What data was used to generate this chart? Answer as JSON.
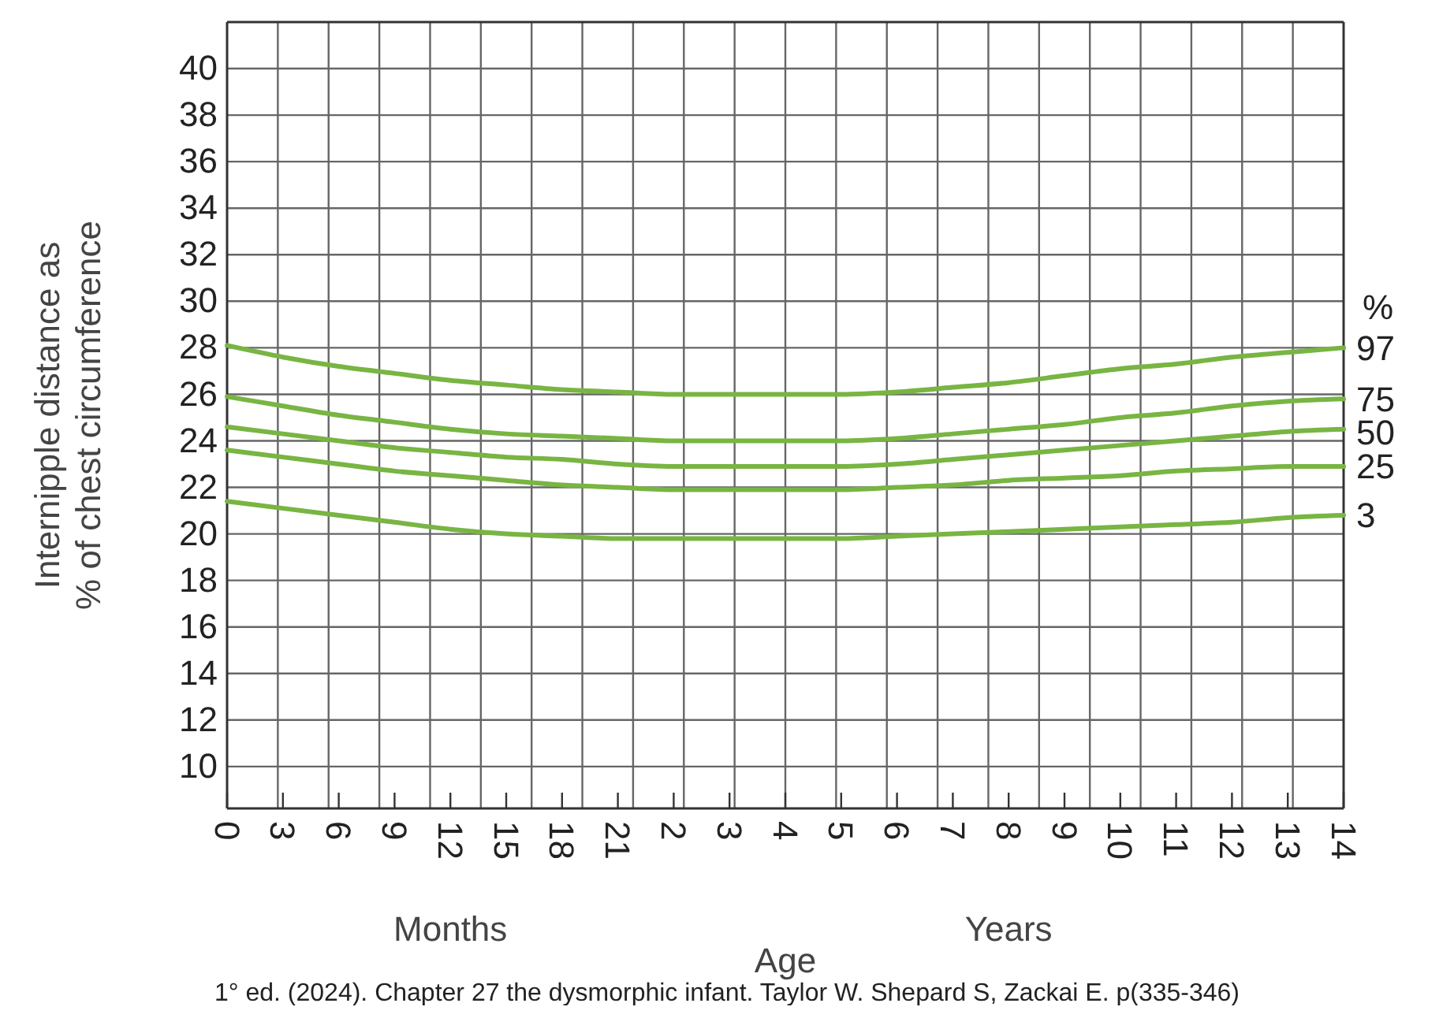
{
  "chart_data": {
    "type": "line",
    "ylabel": "Internipple distance as % of chest circumference",
    "xlabel": "Age",
    "legend_title": "%",
    "categories": [
      "0",
      "3",
      "6",
      "9",
      "12",
      "15",
      "18",
      "21",
      "2",
      "3",
      "4",
      "5",
      "6",
      "7",
      "8",
      "9",
      "10",
      "11",
      "12",
      "13",
      "14"
    ],
    "series": [
      {
        "name": "97",
        "color": "#78b543",
        "values": [
          28.1,
          27.6,
          27.2,
          26.9,
          26.6,
          26.4,
          26.2,
          26.1,
          26.0,
          26.0,
          26.0,
          26.0,
          26.1,
          26.3,
          26.5,
          26.8,
          27.1,
          27.3,
          27.6,
          27.8,
          28.0
        ]
      },
      {
        "name": "75",
        "color": "#78b543",
        "values": [
          25.9,
          25.5,
          25.1,
          24.8,
          24.5,
          24.3,
          24.2,
          24.1,
          24.0,
          24.0,
          24.0,
          24.0,
          24.1,
          24.3,
          24.5,
          24.7,
          25.0,
          25.2,
          25.5,
          25.7,
          25.8
        ]
      },
      {
        "name": "50",
        "color": "#78b543",
        "values": [
          24.6,
          24.3,
          24.0,
          23.7,
          23.5,
          23.3,
          23.2,
          23.0,
          22.9,
          22.9,
          22.9,
          22.9,
          23.0,
          23.2,
          23.4,
          23.6,
          23.8,
          24.0,
          24.2,
          24.4,
          24.5
        ]
      },
      {
        "name": "25",
        "color": "#78b543",
        "values": [
          23.6,
          23.3,
          23.0,
          22.7,
          22.5,
          22.3,
          22.1,
          22.0,
          21.9,
          21.9,
          21.9,
          21.9,
          22.0,
          22.1,
          22.3,
          22.4,
          22.5,
          22.7,
          22.8,
          22.9,
          22.9
        ]
      },
      {
        "name": "3",
        "color": "#78b543",
        "values": [
          21.4,
          21.1,
          20.8,
          20.5,
          20.2,
          20.0,
          19.9,
          19.8,
          19.8,
          19.8,
          19.8,
          19.8,
          19.9,
          20.0,
          20.1,
          20.2,
          20.3,
          20.4,
          20.5,
          20.7,
          20.8
        ]
      }
    ],
    "ylim": [
      8.2,
      42
    ],
    "yticks": [
      10,
      12,
      14,
      16,
      18,
      20,
      22,
      24,
      26,
      28,
      30,
      32,
      34,
      36,
      38,
      40
    ],
    "grid": true,
    "legend": "right",
    "line_style": "solid",
    "annotations": [
      "Months",
      "Years",
      "1° ed. (2024). Chapter 27 the dysmorphic infant. Taylor W. Shepard S, Zackai E. p(335-346)"
    ]
  }
}
